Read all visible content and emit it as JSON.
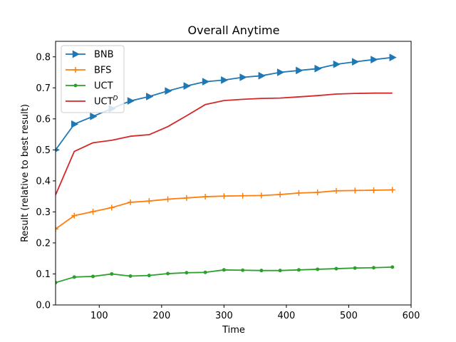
{
  "chart_data": {
    "type": "line",
    "title": "Overall Anytime",
    "xlabel": "Time",
    "ylabel": "Result (relative to best result)",
    "xlim": [
      30,
      600
    ],
    "ylim": [
      0.0,
      0.85
    ],
    "xticks": [
      100,
      200,
      300,
      400,
      500,
      600
    ],
    "yticks": [
      0.0,
      0.1,
      0.2,
      0.3,
      0.4,
      0.5,
      0.6,
      0.7,
      0.8
    ],
    "grid": false,
    "legend_position": "upper-left",
    "series": [
      {
        "name": "BNB",
        "color": "#1f77b4",
        "marker": "triangle-right",
        "x": [
          30,
          60,
          90,
          120,
          150,
          180,
          210,
          240,
          270,
          300,
          330,
          360,
          390,
          420,
          450,
          480,
          510,
          540,
          570
        ],
        "y": [
          0.5,
          0.583,
          0.608,
          0.633,
          0.658,
          0.672,
          0.69,
          0.706,
          0.72,
          0.725,
          0.734,
          0.739,
          0.75,
          0.756,
          0.762,
          0.776,
          0.784,
          0.791,
          0.798
        ]
      },
      {
        "name": "BFS",
        "color": "#ff7f0e",
        "marker": "plus",
        "x": [
          30,
          60,
          90,
          120,
          150,
          180,
          210,
          240,
          270,
          300,
          330,
          360,
          390,
          420,
          450,
          480,
          510,
          540,
          570
        ],
        "y": [
          0.245,
          0.288,
          0.301,
          0.314,
          0.331,
          0.335,
          0.341,
          0.345,
          0.349,
          0.351,
          0.352,
          0.353,
          0.356,
          0.361,
          0.363,
          0.368,
          0.369,
          0.37,
          0.371
        ]
      },
      {
        "name": "UCT",
        "color": "#2ca02c",
        "marker": "dot",
        "x": [
          30,
          60,
          90,
          120,
          150,
          180,
          210,
          240,
          270,
          300,
          330,
          360,
          390,
          420,
          450,
          480,
          510,
          540,
          570
        ],
        "y": [
          0.072,
          0.09,
          0.092,
          0.1,
          0.093,
          0.095,
          0.101,
          0.104,
          0.105,
          0.113,
          0.112,
          0.111,
          0.111,
          0.113,
          0.115,
          0.117,
          0.119,
          0.12,
          0.122
        ]
      },
      {
        "name": "UCT",
        "name_superscript": "D",
        "color": "#d62728",
        "marker": "none",
        "x": [
          30,
          60,
          90,
          120,
          150,
          180,
          210,
          240,
          270,
          300,
          330,
          360,
          390,
          420,
          450,
          480,
          510,
          540,
          570
        ],
        "y": [
          0.355,
          0.495,
          0.523,
          0.531,
          0.544,
          0.549,
          0.575,
          0.61,
          0.646,
          0.659,
          0.663,
          0.666,
          0.667,
          0.671,
          0.675,
          0.68,
          0.682,
          0.683,
          0.683
        ]
      }
    ]
  }
}
